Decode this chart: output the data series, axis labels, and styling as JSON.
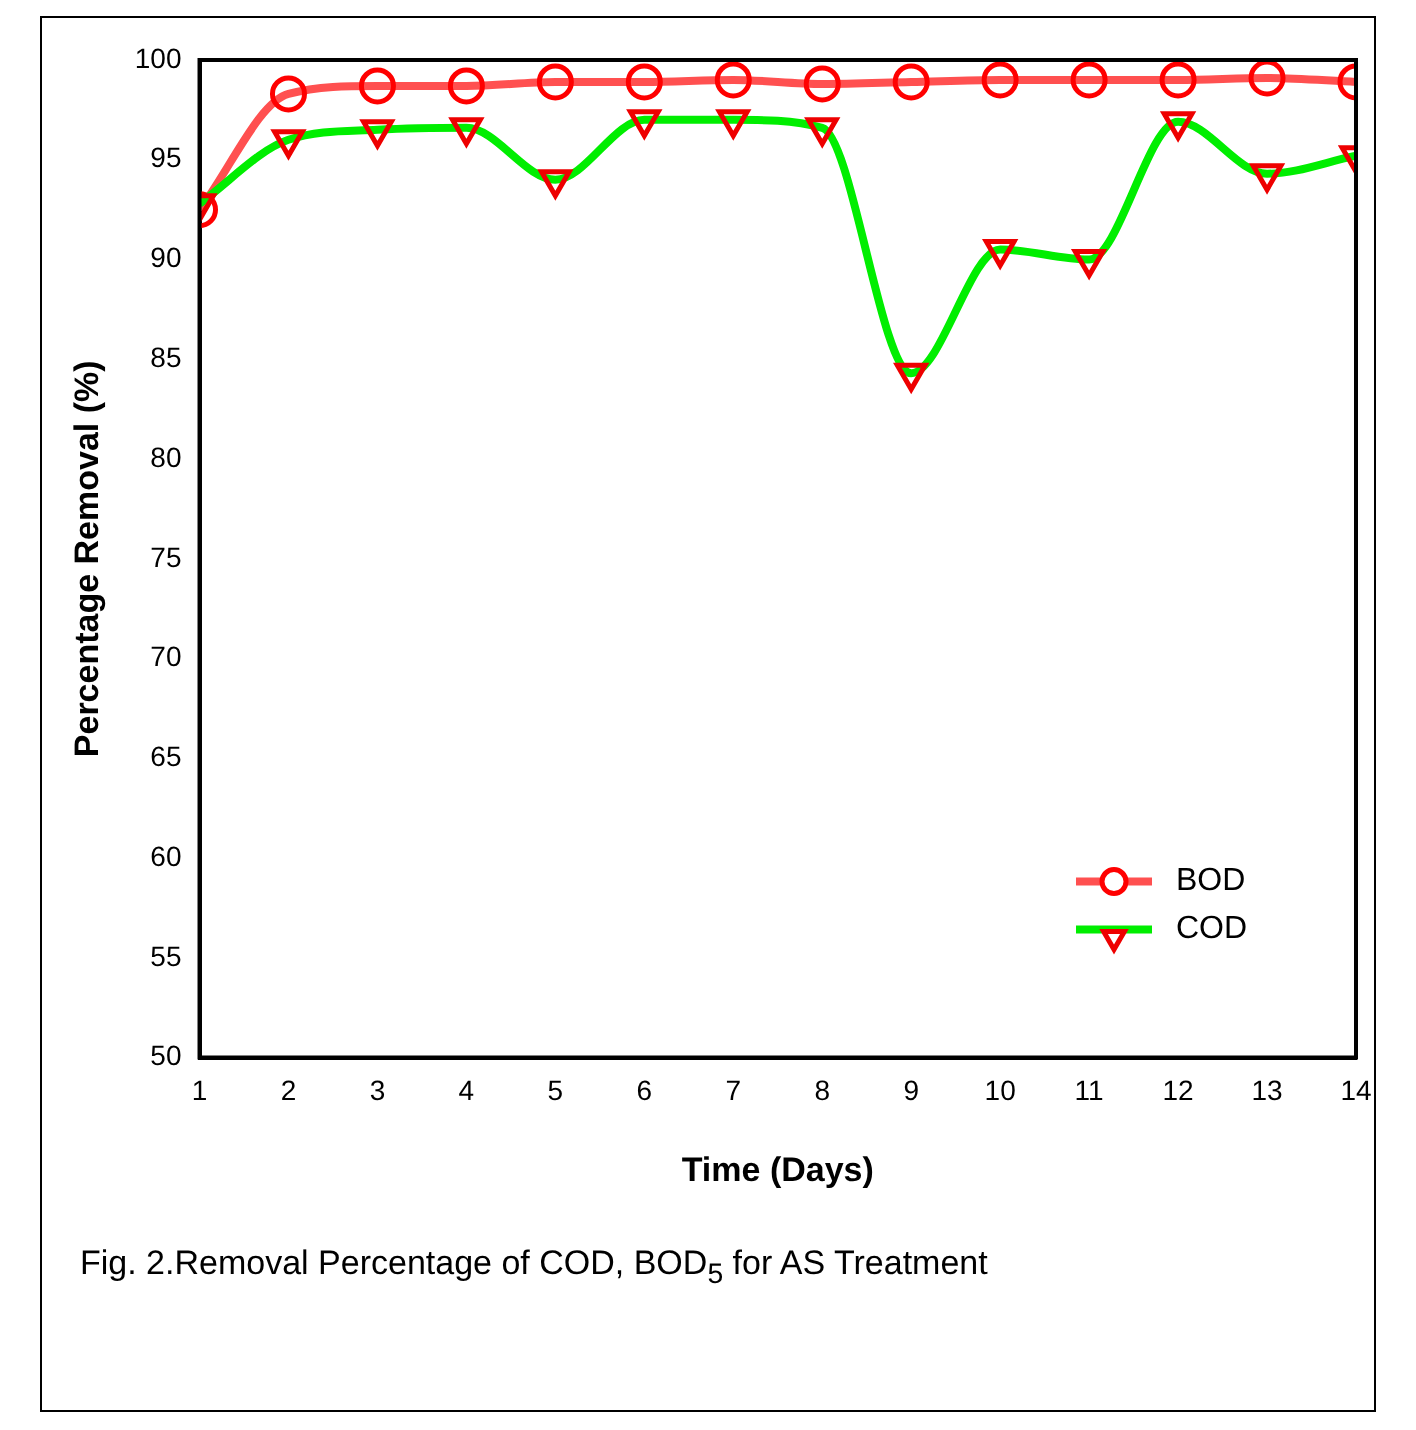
{
  "chart_data": {
    "type": "line",
    "xlabel": "Time (Days)",
    "ylabel": "Percentage Removal (%)",
    "x": [
      1,
      2,
      3,
      4,
      5,
      6,
      7,
      8,
      9,
      10,
      11,
      12,
      13,
      14
    ],
    "xlim": [
      1,
      14
    ],
    "xticks": [
      1,
      2,
      3,
      4,
      5,
      6,
      7,
      8,
      9,
      10,
      11,
      12,
      13,
      14
    ],
    "ylim": [
      50,
      100
    ],
    "yticks": [
      50,
      55,
      60,
      65,
      70,
      75,
      80,
      85,
      90,
      95,
      100
    ],
    "grid": false,
    "legend": "bottom right",
    "series": [
      {
        "name": "BOD",
        "color": "#ff5050",
        "marker": "circle",
        "colors": [
          "#ff0000",
          "#ff0000",
          "#ff0000",
          "#ff0000",
          "#ff0000",
          "#ff0000",
          "#ff0000",
          "#ff0000",
          "#ff0000",
          "#ff0000",
          "#ff0000",
          "#ff0000",
          "#ff0000",
          "#ff0000"
        ],
        "values": [
          92.5,
          98.3,
          98.7,
          98.7,
          98.9,
          98.9,
          99.0,
          98.8,
          98.9,
          99.0,
          99.0,
          99.0,
          99.1,
          98.9
        ]
      },
      {
        "name": "COD",
        "color": "#00ee00",
        "marker": "triangle",
        "colors": [
          "#ee0000",
          "#ee0000",
          "#ee0000",
          "#ee0000",
          "#ee0000",
          "#ee0000",
          "#ee0000",
          "#ee0000",
          "#ee0000",
          "#ee0000",
          "#ee0000",
          "#ee0000",
          "#ee0000",
          "#ee0000"
        ],
        "values": [
          92.8,
          96.0,
          96.5,
          96.6,
          94.0,
          97.0,
          97.0,
          96.6,
          84.3,
          90.5,
          90.0,
          96.9,
          94.3,
          95.2
        ]
      }
    ],
    "annotations": [
      "Fig. 2.Removal Percentage of COD, BOD$_{5}$ for AS Treatment"
    ]
  }
}
